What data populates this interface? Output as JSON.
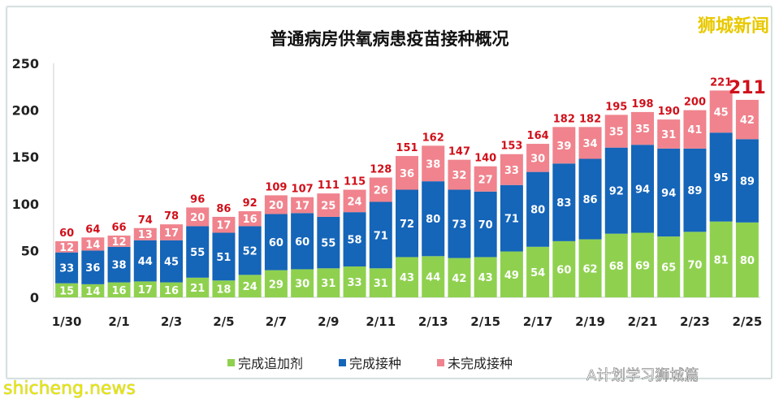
{
  "watermarks": {
    "brand": "狮城新闻",
    "site": "shicheng.news",
    "account": "A计划学习狮城篇"
  },
  "chart_data": {
    "type": "bar",
    "stacked": true,
    "title": "普通病房供氧病患疫苗接种概况",
    "ylim": [
      0,
      250
    ],
    "yticks": [
      0,
      50,
      100,
      150,
      200,
      250
    ],
    "grid": false,
    "legend_position": "bottom",
    "categories": [
      "1/30",
      "1/31",
      "2/1",
      "2/2",
      "2/3",
      "2/4",
      "2/5",
      "2/6",
      "2/7",
      "2/8",
      "2/9",
      "2/10",
      "2/11",
      "2/12",
      "2/13",
      "2/14",
      "2/15",
      "2/16",
      "2/17",
      "2/18",
      "2/19",
      "2/20",
      "2/21",
      "2/22",
      "2/23",
      "2/24",
      "2/25"
    ],
    "tick_labels": [
      "1/30",
      "2/1",
      "2/3",
      "2/5",
      "2/7",
      "2/9",
      "2/11",
      "2/13",
      "2/15",
      "2/17",
      "2/19",
      "2/21",
      "2/23",
      "2/25"
    ],
    "series": [
      {
        "name": "完成追加剂",
        "color": "#8fd14f",
        "values": [
          15,
          14,
          16,
          17,
          16,
          21,
          18,
          24,
          29,
          30,
          31,
          33,
          31,
          43,
          44,
          42,
          43,
          49,
          54,
          60,
          62,
          68,
          69,
          65,
          70,
          81,
          80
        ]
      },
      {
        "name": "完成接种",
        "color": "#1565b8",
        "values": [
          33,
          36,
          38,
          44,
          45,
          55,
          51,
          52,
          60,
          60,
          55,
          58,
          71,
          72,
          80,
          73,
          70,
          71,
          80,
          83,
          86,
          92,
          94,
          94,
          89,
          95,
          89
        ]
      },
      {
        "name": "未完成接种",
        "color": "#f0838d",
        "values": [
          12,
          14,
          12,
          13,
          17,
          20,
          17,
          16,
          20,
          17,
          25,
          24,
          26,
          36,
          38,
          32,
          27,
          33,
          30,
          39,
          34,
          35,
          35,
          31,
          41,
          45,
          42
        ]
      }
    ],
    "totals": [
      60,
      64,
      66,
      74,
      78,
      96,
      86,
      92,
      109,
      107,
      111,
      115,
      128,
      151,
      162,
      147,
      140,
      153,
      164,
      182,
      182,
      195,
      198,
      190,
      200,
      221,
      211
    ],
    "total_label_color": "#d0101a"
  }
}
